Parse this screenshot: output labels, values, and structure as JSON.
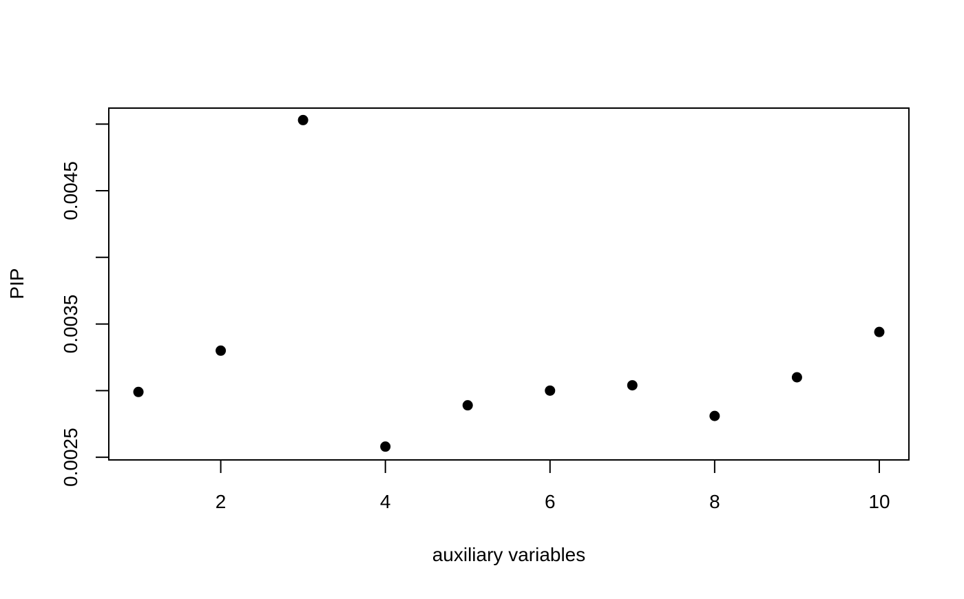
{
  "chart_data": {
    "type": "scatter",
    "title": "",
    "xlabel": "auxiliary variables",
    "ylabel": "PIP",
    "x": [
      1,
      2,
      3,
      4,
      5,
      6,
      7,
      8,
      9,
      10
    ],
    "y": [
      0.00299,
      0.0033,
      0.00503,
      0.00258,
      0.00289,
      0.003,
      0.00304,
      0.00281,
      0.0031,
      0.00344
    ],
    "xlim": [
      0.64,
      10.36
    ],
    "ylim": [
      0.00248,
      0.00512
    ],
    "x_ticks": [
      2,
      4,
      6,
      8,
      10
    ],
    "x_tick_labels": [
      "2",
      "4",
      "6",
      "8",
      "10"
    ],
    "y_ticks": [
      0.0025,
      0.003,
      0.0035,
      0.004,
      0.0045,
      0.005
    ],
    "y_tick_labels": [
      "0.0025",
      "",
      "0.0035",
      "",
      "0.0045",
      ""
    ],
    "grid": false,
    "legend": "none",
    "marker_color": "#000000"
  }
}
